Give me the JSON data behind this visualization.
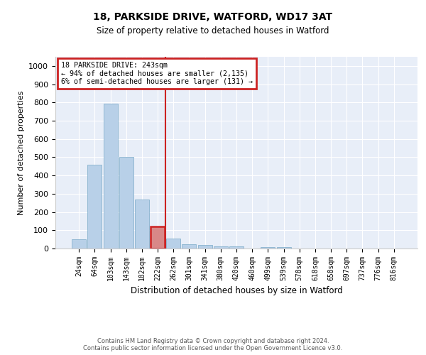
{
  "title1": "18, PARKSIDE DRIVE, WATFORD, WD17 3AT",
  "title2": "Size of property relative to detached houses in Watford",
  "xlabel": "Distribution of detached houses by size in Watford",
  "ylabel": "Number of detached properties",
  "categories": [
    "24sqm",
    "64sqm",
    "103sqm",
    "143sqm",
    "182sqm",
    "222sqm",
    "262sqm",
    "301sqm",
    "341sqm",
    "380sqm",
    "420sqm",
    "460sqm",
    "499sqm",
    "539sqm",
    "578sqm",
    "618sqm",
    "658sqm",
    "697sqm",
    "737sqm",
    "776sqm",
    "816sqm"
  ],
  "values": [
    50,
    460,
    795,
    500,
    270,
    120,
    55,
    22,
    20,
    12,
    12,
    0,
    8,
    8,
    0,
    0,
    0,
    0,
    0,
    0,
    0
  ],
  "bar_color": "#b8d0e8",
  "bar_edge_color": "#7aaac8",
  "highlight_bar_index": 5,
  "highlight_color": "#cc2222",
  "vline_x": 5.5,
  "vline_color": "#cc2222",
  "ylim": [
    0,
    1050
  ],
  "yticks": [
    0,
    100,
    200,
    300,
    400,
    500,
    600,
    700,
    800,
    900,
    1000
  ],
  "annotation_text": "18 PARKSIDE DRIVE: 243sqm\n← 94% of detached houses are smaller (2,135)\n6% of semi-detached houses are larger (131) →",
  "annotation_box_color": "#cc2222",
  "footer1": "Contains HM Land Registry data © Crown copyright and database right 2024.",
  "footer2": "Contains public sector information licensed under the Open Government Licence v3.0.",
  "bg_color": "#e8eef8",
  "fig_bg_color": "#ffffff"
}
